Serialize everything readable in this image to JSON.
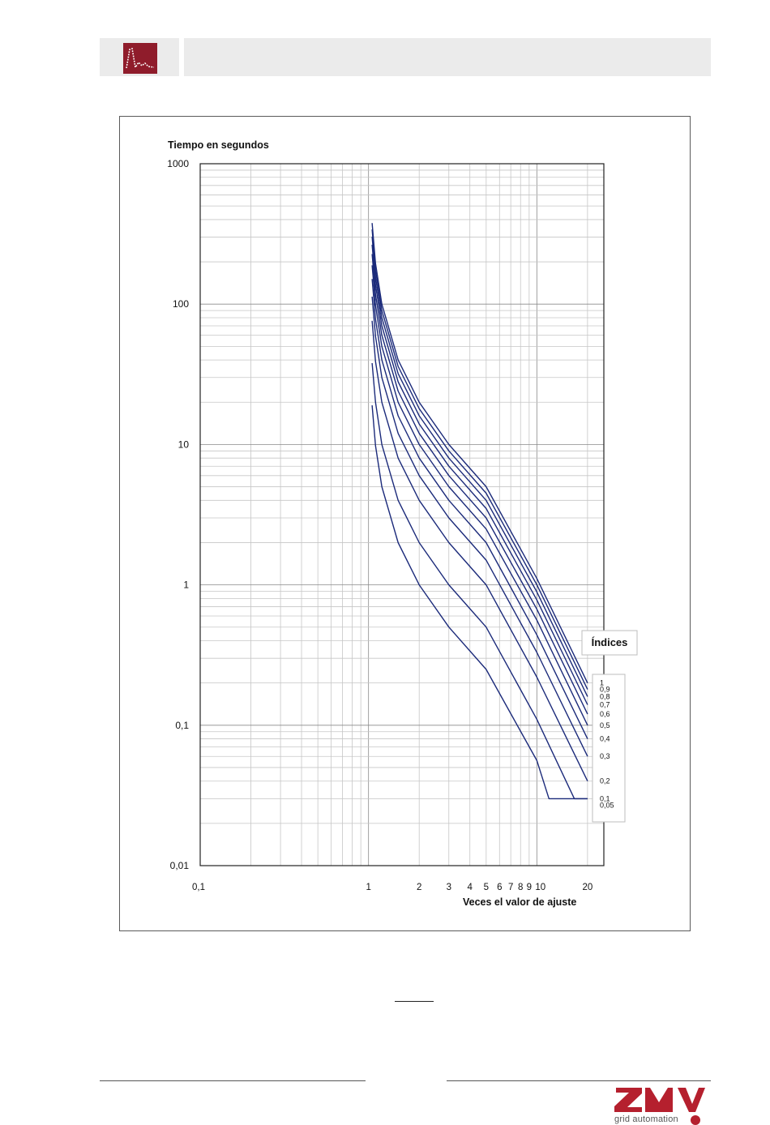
{
  "header": {
    "logo_icon": "waveform-icon",
    "logo_color": "#8f1c2b",
    "bar_color": "#ebebeb"
  },
  "chart_data": {
    "type": "line",
    "title": "",
    "ylabel": "Tiempo en segundos",
    "xlabel": "Veces el valor de ajuste",
    "x_scale": "log",
    "y_scale": "log",
    "xlim": [
      0.1,
      25
    ],
    "ylim": [
      0.01,
      1000
    ],
    "x_ticks": [
      "0,1",
      "1",
      "2",
      "3",
      "4",
      "5",
      "6",
      "7",
      "8",
      "9",
      "10",
      "20"
    ],
    "y_ticks": [
      "1000",
      "100",
      "10",
      "1",
      "0,1",
      "0,01"
    ],
    "grid": true,
    "line_color": "#1b2a7a",
    "legend": {
      "title": "Índices",
      "placement": "right"
    },
    "min_time": 0.03,
    "series": [
      {
        "name": "1",
        "x": [
          1.05,
          1.1,
          1.2,
          1.5,
          2,
          3,
          5,
          10,
          20
        ],
        "values": [
          378,
          195,
          100,
          40,
          20,
          10,
          5,
          1.11,
          0.2
        ]
      },
      {
        "name": "0,9",
        "x": [
          1.05,
          1.1,
          1.2,
          1.5,
          2,
          3,
          5,
          10,
          20
        ],
        "values": [
          340,
          175,
          90,
          36,
          18,
          9,
          4.5,
          1.0,
          0.18
        ]
      },
      {
        "name": "0,8",
        "x": [
          1.05,
          1.1,
          1.2,
          1.5,
          2,
          3,
          5,
          10,
          20
        ],
        "values": [
          302,
          156,
          80,
          32,
          16,
          8,
          4.0,
          0.89,
          0.16
        ]
      },
      {
        "name": "0,7",
        "x": [
          1.05,
          1.1,
          1.2,
          1.5,
          2,
          3,
          5,
          10,
          20
        ],
        "values": [
          265,
          137,
          70,
          28,
          14,
          7,
          3.5,
          0.78,
          0.14
        ]
      },
      {
        "name": "0,6",
        "x": [
          1.05,
          1.1,
          1.2,
          1.5,
          2,
          3,
          5,
          10,
          20
        ],
        "values": [
          227,
          117,
          60,
          24,
          12,
          6,
          3.0,
          0.67,
          0.12
        ]
      },
      {
        "name": "0,5",
        "x": [
          1.05,
          1.1,
          1.2,
          1.5,
          2,
          3,
          5,
          10,
          20
        ],
        "values": [
          189,
          98,
          50,
          20,
          10,
          5,
          2.5,
          0.56,
          0.1
        ]
      },
      {
        "name": "0,4",
        "x": [
          1.05,
          1.1,
          1.2,
          1.5,
          2,
          3,
          5,
          10,
          20
        ],
        "values": [
          151,
          78,
          40,
          16,
          8,
          4,
          2.0,
          0.44,
          0.08
        ]
      },
      {
        "name": "0,3",
        "x": [
          1.05,
          1.1,
          1.2,
          1.5,
          2,
          3,
          5,
          10,
          20
        ],
        "values": [
          113,
          59,
          30,
          12,
          6,
          3,
          1.5,
          0.33,
          0.06
        ]
      },
      {
        "name": "0,2",
        "x": [
          1.05,
          1.1,
          1.2,
          1.5,
          2,
          3,
          5,
          10,
          20
        ],
        "values": [
          76,
          39,
          20,
          8,
          4,
          2,
          1.0,
          0.22,
          0.04
        ]
      },
      {
        "name": "0,1",
        "x": [
          1.05,
          1.1,
          1.2,
          1.5,
          2,
          3,
          5,
          10,
          16.7,
          20
        ],
        "values": [
          38,
          20,
          10,
          4,
          2,
          1,
          0.5,
          0.11,
          0.03,
          0.03
        ]
      },
      {
        "name": "0,05",
        "x": [
          1.05,
          1.1,
          1.2,
          1.5,
          2,
          3,
          5,
          10,
          11.8,
          20
        ],
        "values": [
          19,
          9.8,
          5,
          2,
          1,
          0.5,
          0.25,
          0.056,
          0.03,
          0.03
        ]
      }
    ]
  },
  "footer": {
    "brand": "grid automation",
    "brand_color": "#b5202e"
  }
}
